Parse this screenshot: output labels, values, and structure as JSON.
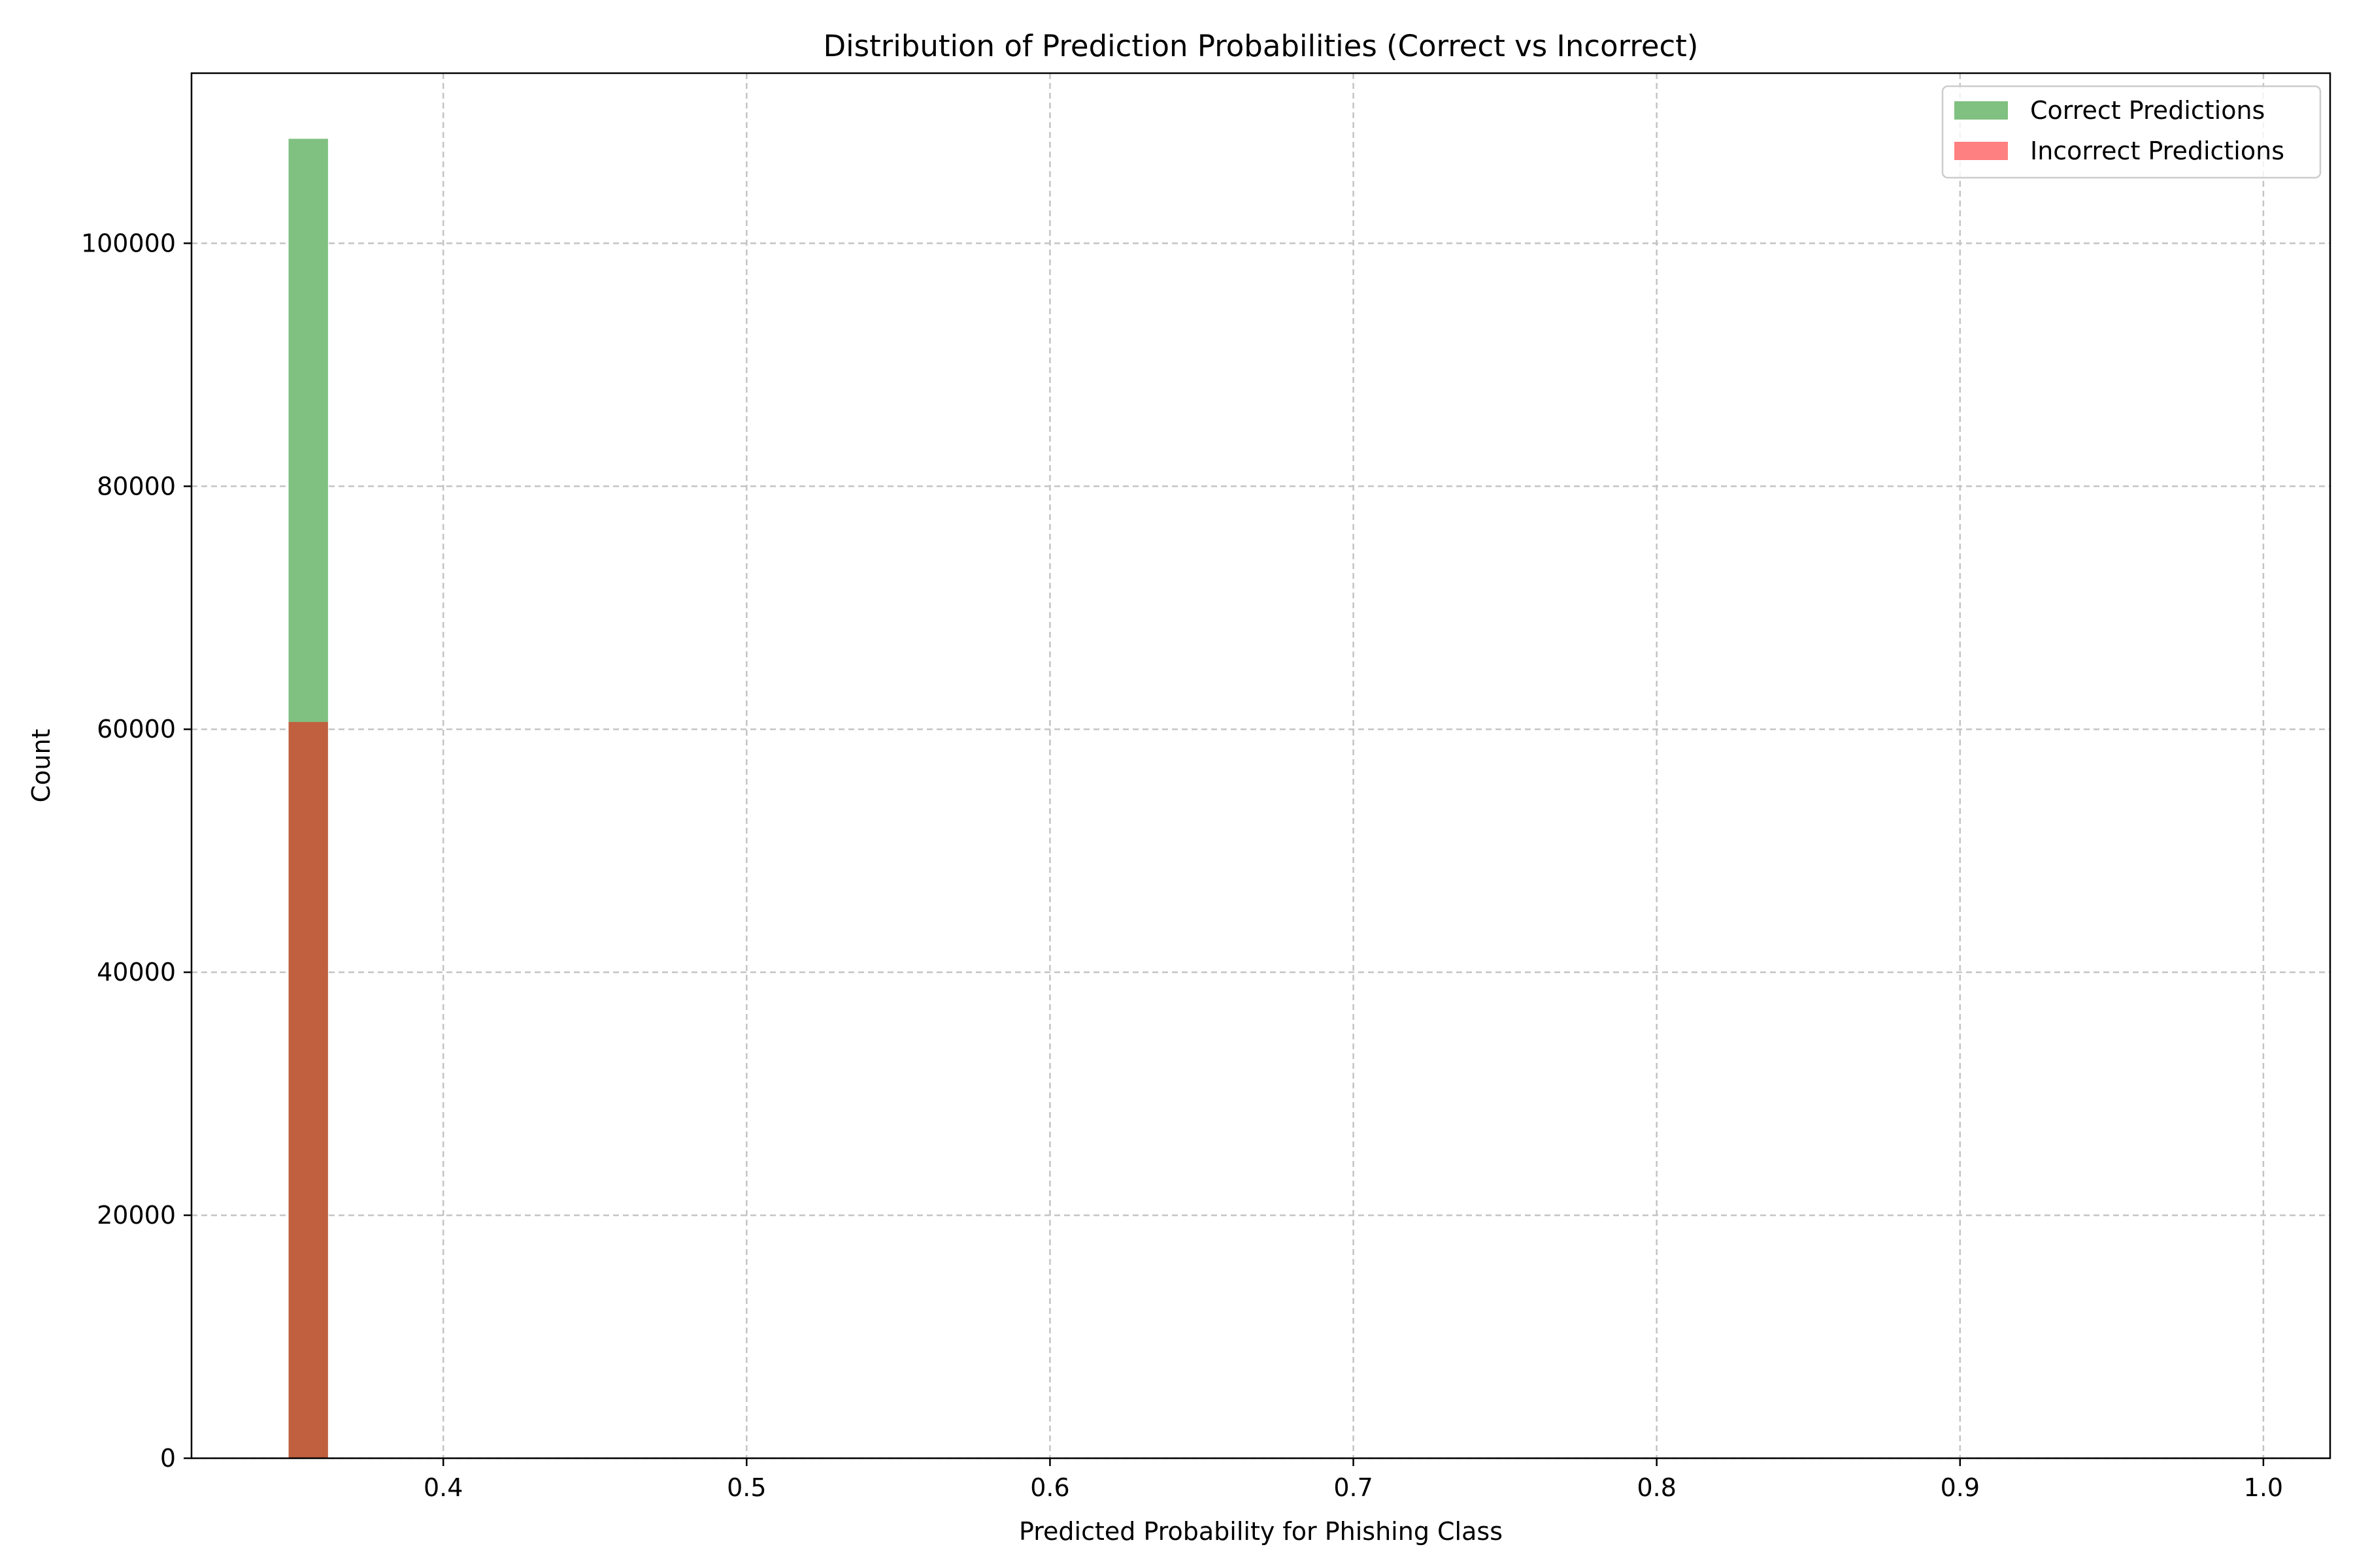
{
  "chart_data": {
    "type": "bar",
    "title": "Distribution of Prediction Probabilities (Correct vs Incorrect)",
    "xlabel": "Predicted Probability for Phishing Class",
    "ylabel": "Count",
    "xlim": [
      0.317,
      1.022
    ],
    "ylim": [
      0,
      114000
    ],
    "xticks": [
      0.4,
      0.5,
      0.6,
      0.7,
      0.8,
      0.9,
      1.0
    ],
    "xtick_labels": [
      "0.4",
      "0.5",
      "0.6",
      "0.7",
      "0.8",
      "0.9",
      "1.0"
    ],
    "yticks": [
      0,
      20000,
      40000,
      60000,
      80000,
      100000
    ],
    "ytick_labels": [
      "0",
      "20000",
      "40000",
      "60000",
      "80000",
      "100000"
    ],
    "grid": true,
    "legend_position": "top-right",
    "series": [
      {
        "name": "Correct Predictions",
        "color": "#80c080",
        "bins": [
          {
            "x0": 0.349,
            "x1": 0.362,
            "value": 108600
          }
        ]
      },
      {
        "name": "Incorrect Predictions",
        "color": "#ff8080",
        "bins": [
          {
            "x0": 0.349,
            "x1": 0.362,
            "value": 60600
          }
        ]
      }
    ],
    "overlap_color": "#c0603f"
  }
}
